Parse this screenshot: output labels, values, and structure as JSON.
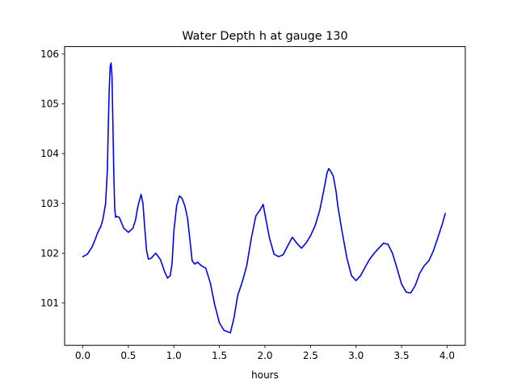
{
  "chart_data": {
    "type": "line",
    "title": "Water Depth h at gauge 130",
    "xlabel": "hours",
    "ylabel": "",
    "xlim": [
      -0.2,
      4.2
    ],
    "ylim": [
      100.15,
      106.15
    ],
    "xticks": [
      0.0,
      0.5,
      1.0,
      1.5,
      2.0,
      2.5,
      3.0,
      3.5,
      4.0
    ],
    "xtick_labels": [
      "0.0",
      "0.5",
      "1.0",
      "1.5",
      "2.0",
      "2.5",
      "3.0",
      "3.5",
      "4.0"
    ],
    "yticks": [
      101,
      102,
      103,
      104,
      105,
      106
    ],
    "ytick_labels": [
      "101",
      "102",
      "103",
      "104",
      "105",
      "106"
    ],
    "grid": false,
    "series": [
      {
        "color": "#0000ff",
        "x": [
          0.0,
          0.05,
          0.1,
          0.13,
          0.16,
          0.2,
          0.22,
          0.25,
          0.27,
          0.28,
          0.29,
          0.3,
          0.31,
          0.32,
          0.33,
          0.34,
          0.35,
          0.36,
          0.37,
          0.4,
          0.45,
          0.5,
          0.55,
          0.58,
          0.6,
          0.62,
          0.64,
          0.66,
          0.68,
          0.7,
          0.72,
          0.75,
          0.8,
          0.85,
          0.9,
          0.93,
          0.96,
          0.98,
          1.0,
          1.03,
          1.06,
          1.09,
          1.12,
          1.15,
          1.18,
          1.2,
          1.23,
          1.26,
          1.3,
          1.35,
          1.4,
          1.45,
          1.5,
          1.55,
          1.58,
          1.62,
          1.66,
          1.7,
          1.75,
          1.8,
          1.85,
          1.9,
          1.95,
          1.98,
          2.0,
          2.05,
          2.1,
          2.15,
          2.2,
          2.25,
          2.3,
          2.35,
          2.4,
          2.45,
          2.5,
          2.55,
          2.6,
          2.65,
          2.68,
          2.7,
          2.72,
          2.75,
          2.78,
          2.8,
          2.85,
          2.9,
          2.95,
          3.0,
          3.05,
          3.1,
          3.15,
          3.2,
          3.25,
          3.3,
          3.35,
          3.4,
          3.45,
          3.5,
          3.55,
          3.6,
          3.65,
          3.7,
          3.75,
          3.8,
          3.85,
          3.9,
          3.95,
          3.98
        ],
        "y": [
          101.93,
          101.98,
          102.12,
          102.25,
          102.4,
          102.55,
          102.68,
          103.0,
          103.7,
          104.6,
          105.3,
          105.75,
          105.82,
          105.55,
          104.6,
          103.6,
          102.9,
          102.72,
          102.74,
          102.72,
          102.5,
          102.42,
          102.5,
          102.68,
          102.9,
          103.05,
          103.18,
          103.0,
          102.5,
          102.05,
          101.88,
          101.9,
          102.0,
          101.88,
          101.62,
          101.5,
          101.55,
          101.8,
          102.45,
          102.95,
          103.15,
          103.1,
          102.95,
          102.7,
          102.2,
          101.85,
          101.78,
          101.82,
          101.75,
          101.7,
          101.4,
          100.95,
          100.6,
          100.45,
          100.43,
          100.4,
          100.7,
          101.15,
          101.42,
          101.75,
          102.3,
          102.75,
          102.88,
          102.98,
          102.78,
          102.3,
          101.98,
          101.93,
          101.97,
          102.15,
          102.32,
          102.2,
          102.1,
          102.2,
          102.35,
          102.55,
          102.85,
          103.3,
          103.6,
          103.7,
          103.65,
          103.55,
          103.25,
          102.95,
          102.4,
          101.9,
          101.55,
          101.45,
          101.55,
          101.72,
          101.88,
          102.0,
          102.1,
          102.2,
          102.18,
          102.0,
          101.7,
          101.38,
          101.22,
          101.2,
          101.35,
          101.6,
          101.75,
          101.85,
          102.05,
          102.32,
          102.6,
          102.8
        ]
      }
    ]
  }
}
